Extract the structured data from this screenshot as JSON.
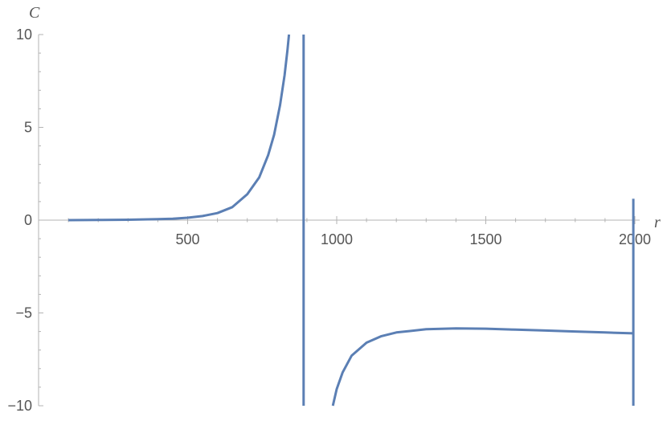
{
  "chart_data": {
    "type": "line",
    "title": "",
    "xlabel": "r",
    "ylabel": "C",
    "xlim": [
      0,
      2000
    ],
    "ylim": [
      -10,
      10
    ],
    "x_ticks": [
      500,
      1000,
      1500,
      2000
    ],
    "y_ticks": [
      -10,
      -5,
      0,
      5,
      10
    ],
    "x_tick_labels": [
      "500",
      "1000",
      "1500",
      "2000"
    ],
    "y_tick_labels": [
      "−10",
      "−5",
      "0",
      "5",
      "10"
    ],
    "grid": false,
    "legend": "none",
    "color": "#5b7fb4",
    "series": [
      {
        "segment": "left-branch",
        "x": [
          100,
          200,
          300,
          400,
          450,
          500,
          550,
          600,
          650,
          700,
          740,
          770,
          790,
          810,
          825,
          835,
          840
        ],
        "y": [
          0.0,
          0.01,
          0.02,
          0.05,
          0.08,
          0.13,
          0.22,
          0.38,
          0.7,
          1.4,
          2.3,
          3.5,
          4.6,
          6.2,
          7.8,
          9.2,
          10.0
        ]
      },
      {
        "segment": "asymptote",
        "x": [
          889,
          889
        ],
        "y": [
          10.0,
          -10.0
        ]
      },
      {
        "segment": "right-branch",
        "x": [
          987,
          1000,
          1020,
          1050,
          1100,
          1150,
          1200,
          1300,
          1400,
          1500,
          1600,
          1700,
          1800,
          1900,
          1995
        ],
        "y": [
          -10.0,
          -9.1,
          -8.2,
          -7.3,
          -6.6,
          -6.25,
          -6.05,
          -5.88,
          -5.83,
          -5.85,
          -5.9,
          -5.95,
          -6.0,
          -6.05,
          -6.1
        ]
      },
      {
        "segment": "right-edge",
        "x": [
          1995,
          1995
        ],
        "y": [
          1.15,
          -10.0
        ]
      }
    ]
  }
}
